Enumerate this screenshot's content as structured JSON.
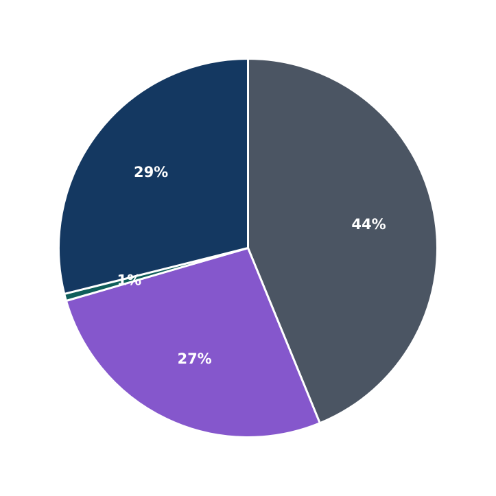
{
  "chart_data": {
    "type": "pie",
    "start": "top",
    "direction": "clockwise",
    "slices": [
      {
        "value": 43.8,
        "label": "44%",
        "color": "#4b5563"
      },
      {
        "value": 26.7,
        "label": "27%",
        "color": "#8557cc"
      },
      {
        "value": 0.6,
        "label": "1%",
        "color": "#0f5e5a"
      },
      {
        "value": 28.9,
        "label": "29%",
        "color": "#143861"
      }
    ],
    "legend": "none"
  }
}
